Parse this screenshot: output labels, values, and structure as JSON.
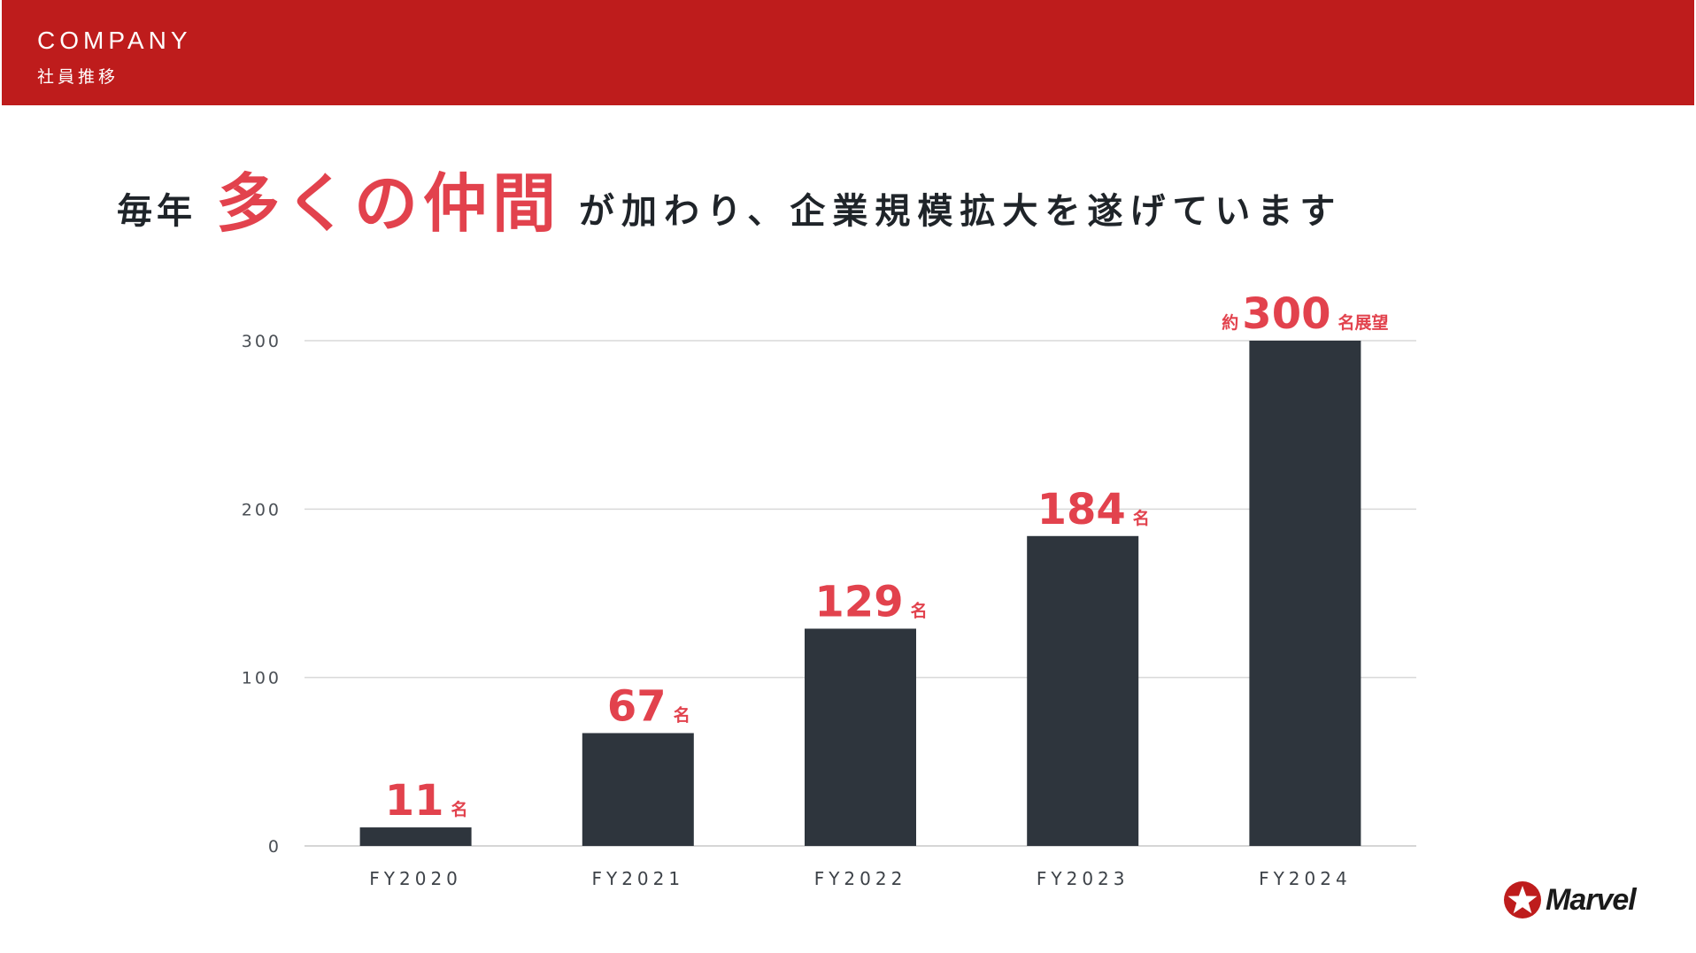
{
  "header": {
    "title": "COMPANY",
    "subtitle": "社員推移"
  },
  "headline": {
    "prefix": "毎年",
    "emphasis": "多くの仲間",
    "suffix": "が加わり、企業規模拡大を遂げています"
  },
  "colors": {
    "header_bg": "#be1c1c",
    "accent": "#e2424d",
    "bar": "#2e353d",
    "grid": "#d9d9d9",
    "text": "#1f2429"
  },
  "chart_data": {
    "type": "bar",
    "categories": [
      "FY2020",
      "FY2021",
      "FY2022",
      "FY2023",
      "FY2024"
    ],
    "values": [
      11,
      67,
      129,
      184,
      300
    ],
    "labels": [
      {
        "prefix": "",
        "value": "11",
        "suffix": "名"
      },
      {
        "prefix": "",
        "value": "67",
        "suffix": "名"
      },
      {
        "prefix": "",
        "value": "129",
        "suffix": "名"
      },
      {
        "prefix": "",
        "value": "184",
        "suffix": "名"
      },
      {
        "prefix": "約",
        "value": "300",
        "suffix": "名展望"
      }
    ],
    "yticks": [
      0,
      100,
      200,
      300
    ],
    "ylim": [
      0,
      300
    ],
    "grid": true,
    "title": "",
    "xlabel": "",
    "ylabel": ""
  },
  "logo": {
    "text": "Marvel",
    "icon": "star-icon"
  }
}
